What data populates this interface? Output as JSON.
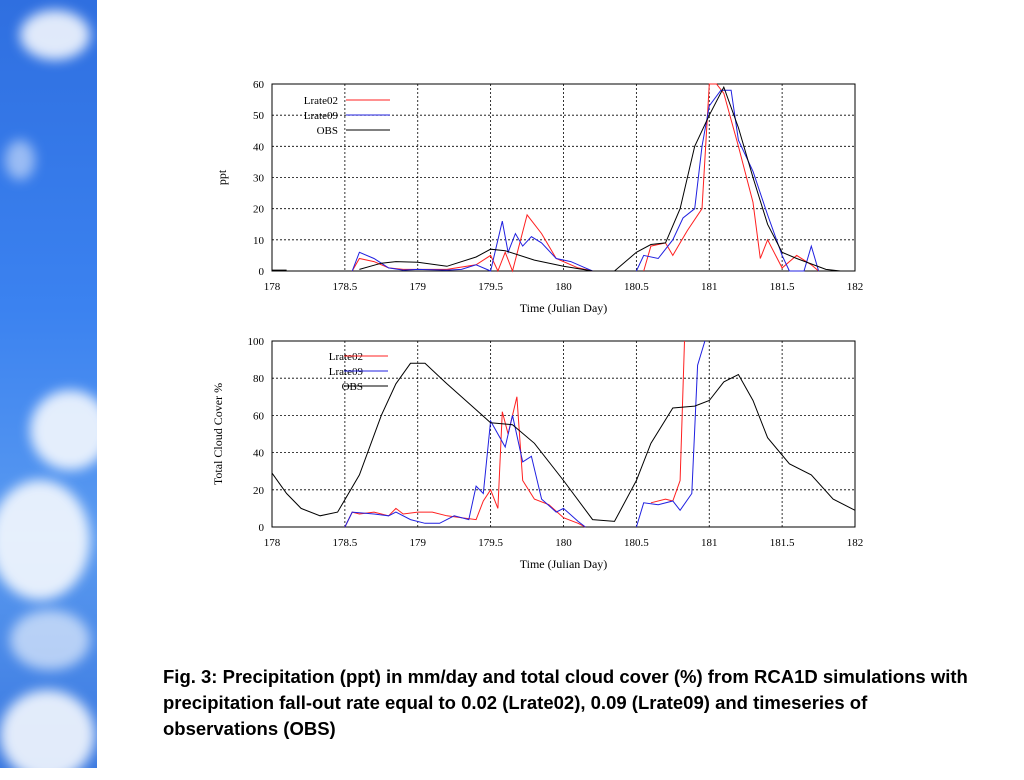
{
  "caption": "Fig. 3: Precipitation (ppt) in mm/day and total cloud cover (%) from RCA1D simulations with precipitation fall-out rate equal to 0.02 (Lrate02), 0.09 (Lrate09) and timeseries of observations (OBS)",
  "colors": {
    "Lrate02": "#ff2020",
    "Lrate09": "#2020e0",
    "OBS": "#000000"
  },
  "chart_data": [
    {
      "type": "line",
      "xlabel": "Time (Julian Day)",
      "ylabel": "ppt",
      "xlim": [
        178,
        182
      ],
      "ylim": [
        0,
        60
      ],
      "xticks": [
        "178",
        "178.5",
        "179",
        "179.5",
        "180",
        "180.5",
        "181",
        "181.5",
        "182"
      ],
      "yticks": [
        "0",
        "10",
        "20",
        "30",
        "40",
        "50",
        "60"
      ],
      "grid": true,
      "legend": "top-left",
      "series": [
        {
          "name": "Lrate02",
          "points": [
            [
              178.55,
              0
            ],
            [
              178.6,
              4
            ],
            [
              178.7,
              3
            ],
            [
              178.8,
              1
            ],
            [
              178.9,
              0.5
            ],
            [
              179,
              0.5
            ],
            [
              179.2,
              0.5
            ],
            [
              179.4,
              2
            ],
            [
              179.5,
              5
            ],
            [
              179.55,
              0
            ],
            [
              179.6,
              6
            ],
            [
              179.65,
              0
            ],
            [
              179.75,
              18
            ],
            [
              179.85,
              12
            ],
            [
              179.95,
              4
            ],
            [
              180.1,
              1
            ],
            [
              180.2,
              0
            ],
            null,
            [
              180.55,
              0
            ],
            [
              180.6,
              8
            ],
            [
              180.7,
              9
            ],
            [
              180.75,
              5
            ],
            [
              180.8,
              9
            ],
            [
              180.85,
              13
            ],
            [
              180.95,
              20
            ],
            [
              181.0,
              60
            ],
            [
              181.05,
              60
            ],
            [
              181.1,
              57
            ],
            [
              181.2,
              40
            ],
            [
              181.3,
              22
            ],
            [
              181.35,
              4
            ],
            [
              181.4,
              10
            ],
            [
              181.5,
              1
            ],
            [
              181.6,
              5
            ],
            [
              181.7,
              2
            ],
            [
              181.75,
              0
            ]
          ]
        },
        {
          "name": "Lrate09",
          "points": [
            [
              178.55,
              0
            ],
            [
              178.6,
              6
            ],
            [
              178.7,
              4
            ],
            [
              178.8,
              1
            ],
            [
              178.9,
              0.3
            ],
            [
              179,
              0.5
            ],
            [
              179.2,
              0.3
            ],
            [
              179.3,
              0.5
            ],
            [
              179.4,
              2
            ],
            [
              179.5,
              0
            ],
            [
              179.58,
              16
            ],
            [
              179.62,
              6
            ],
            [
              179.67,
              12
            ],
            [
              179.72,
              8
            ],
            [
              179.78,
              11
            ],
            [
              179.85,
              9
            ],
            [
              179.95,
              4
            ],
            [
              180.05,
              3
            ],
            [
              180.15,
              1
            ],
            [
              180.2,
              0
            ],
            null,
            [
              180.5,
              0
            ],
            [
              180.55,
              5
            ],
            [
              180.65,
              4
            ],
            [
              180.75,
              10
            ],
            [
              180.82,
              17
            ],
            [
              180.9,
              20
            ],
            [
              180.95,
              40
            ],
            [
              181.0,
              53
            ],
            [
              181.08,
              58
            ],
            [
              181.15,
              58
            ],
            [
              181.2,
              42
            ],
            [
              181.3,
              32
            ],
            [
              181.4,
              18
            ],
            [
              181.5,
              5
            ],
            [
              181.55,
              0
            ],
            [
              181.65,
              0
            ],
            [
              181.7,
              8
            ],
            [
              181.75,
              0
            ]
          ]
        },
        {
          "name": "OBS",
          "points": [
            [
              178,
              0.3
            ],
            [
              178.1,
              0.3
            ],
            null,
            [
              178.6,
              0.5
            ],
            [
              178.75,
              2.5
            ],
            [
              178.85,
              3
            ],
            [
              179,
              2.8
            ],
            [
              179.2,
              1.5
            ],
            [
              179.4,
              4.5
            ],
            [
              179.5,
              7
            ],
            [
              179.6,
              6.5
            ],
            [
              179.8,
              3.5
            ],
            [
              180,
              1.5
            ],
            [
              180.2,
              0
            ],
            null,
            [
              180.35,
              0
            ],
            [
              180.5,
              6
            ],
            [
              180.6,
              8.5
            ],
            [
              180.7,
              9
            ],
            [
              180.8,
              20
            ],
            [
              180.9,
              40
            ],
            [
              181,
              50
            ],
            [
              181.1,
              59
            ],
            [
              181.2,
              46
            ],
            [
              181.3,
              30
            ],
            [
              181.4,
              15
            ],
            [
              181.5,
              6
            ],
            [
              181.6,
              4
            ],
            [
              181.8,
              0.5
            ],
            [
              181.9,
              0
            ]
          ]
        }
      ]
    },
    {
      "type": "line",
      "xlabel": "Time (Julian Day)",
      "ylabel": "Total Cloud Cover %",
      "xlim": [
        178,
        182
      ],
      "ylim": [
        0,
        100
      ],
      "xticks": [
        "178",
        "178.5",
        "179",
        "179.5",
        "180",
        "180.5",
        "181",
        "181.5",
        "182"
      ],
      "yticks": [
        "0",
        "20",
        "40",
        "60",
        "80",
        "100"
      ],
      "grid": true,
      "legend": "top-left",
      "series": [
        {
          "name": "Lrate02",
          "points": [
            [
              178.5,
              0
            ],
            [
              178.55,
              8
            ],
            [
              178.6,
              7
            ],
            [
              178.7,
              8
            ],
            [
              178.8,
              6
            ],
            [
              178.85,
              10
            ],
            [
              178.9,
              7
            ],
            [
              179.0,
              8
            ],
            [
              179.1,
              8
            ],
            [
              179.2,
              6
            ],
            [
              179.3,
              5
            ],
            [
              179.4,
              4
            ],
            [
              179.45,
              14
            ],
            [
              179.5,
              20
            ],
            [
              179.55,
              10
            ],
            [
              179.58,
              62
            ],
            [
              179.62,
              50
            ],
            [
              179.68,
              70
            ],
            [
              179.72,
              25
            ],
            [
              179.8,
              15
            ],
            [
              179.9,
              12
            ],
            [
              180,
              5
            ],
            [
              180.1,
              2
            ],
            [
              180.15,
              0
            ],
            null,
            [
              180.6,
              13
            ],
            [
              180.7,
              15
            ],
            [
              180.75,
              14
            ],
            [
              180.8,
              25
            ],
            [
              180.83,
              100
            ]
          ]
        },
        {
          "name": "Lrate09",
          "points": [
            [
              178.5,
              0
            ],
            [
              178.55,
              8
            ],
            [
              178.7,
              7
            ],
            [
              178.8,
              6
            ],
            [
              178.85,
              8
            ],
            [
              178.95,
              4
            ],
            [
              179.05,
              2
            ],
            [
              179.15,
              2
            ],
            [
              179.25,
              6
            ],
            [
              179.35,
              4
            ],
            [
              179.4,
              22
            ],
            [
              179.45,
              18
            ],
            [
              179.5,
              57
            ],
            [
              179.55,
              50
            ],
            [
              179.6,
              43
            ],
            [
              179.65,
              60
            ],
            [
              179.72,
              35
            ],
            [
              179.78,
              38
            ],
            [
              179.85,
              15
            ],
            [
              179.95,
              8
            ],
            [
              180.0,
              10
            ],
            [
              180.1,
              3
            ],
            [
              180.15,
              0
            ],
            null,
            [
              180.5,
              0
            ],
            [
              180.55,
              13
            ],
            [
              180.65,
              12
            ],
            [
              180.75,
              14
            ],
            [
              180.8,
              9
            ],
            [
              180.88,
              18
            ],
            [
              180.92,
              87
            ],
            [
              180.97,
              100
            ]
          ]
        },
        {
          "name": "OBS",
          "points": [
            [
              178,
              29
            ],
            [
              178.1,
              18
            ],
            [
              178.2,
              10
            ],
            [
              178.33,
              6
            ],
            [
              178.45,
              8
            ],
            [
              178.6,
              28
            ],
            [
              178.75,
              60
            ],
            [
              178.85,
              77
            ],
            [
              178.95,
              88
            ],
            [
              179.05,
              88
            ],
            [
              179.2,
              77
            ],
            [
              179.4,
              63
            ],
            [
              179.5,
              56
            ],
            [
              179.65,
              55
            ],
            [
              179.8,
              45
            ],
            [
              180,
              25
            ],
            [
              180.2,
              4
            ],
            [
              180.35,
              3
            ],
            [
              180.5,
              25
            ],
            [
              180.6,
              45
            ],
            [
              180.75,
              64
            ],
            [
              180.9,
              65
            ],
            [
              181,
              68
            ],
            [
              181.1,
              78
            ],
            [
              181.2,
              82
            ],
            [
              181.3,
              68
            ],
            [
              181.4,
              48
            ],
            [
              181.55,
              34
            ],
            [
              181.7,
              28
            ],
            [
              181.85,
              15
            ],
            [
              182,
              9
            ]
          ]
        }
      ]
    }
  ]
}
